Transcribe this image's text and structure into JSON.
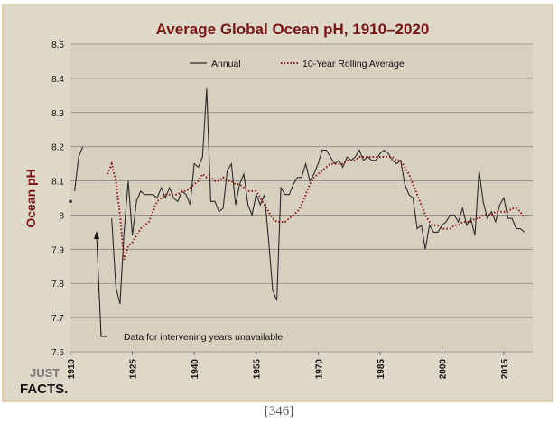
{
  "caption": "[346]",
  "logo": {
    "line1": "JUST",
    "line2": "FACTS."
  },
  "colors": {
    "background": "#ded8c8",
    "plot_area": "#d7d0bf",
    "title": "#7b1515",
    "annual": "#2b2b2b",
    "rolling": "#8e1616",
    "grid": "#888888",
    "border": "#d8c59a"
  },
  "chart_data": {
    "type": "line",
    "title": "Average Global Ocean pH, 1910–2020",
    "ylabel": "Ocean pH",
    "xlabel": "",
    "xlim": [
      1910,
      2022
    ],
    "ylim": [
      7.6,
      8.5
    ],
    "ytick_labels": [
      "7.6",
      "7.7",
      "7.8",
      "7.9",
      "8",
      "8.1",
      "8.2",
      "8.3",
      "8.4",
      "8.5"
    ],
    "xtick_labels": [
      "1910",
      "1925",
      "1940",
      "1955",
      "1970",
      "1985",
      "2000",
      "2015"
    ],
    "grid": "horizontal",
    "legend_position": "top",
    "annotation": "Data for intervening years unavailable",
    "series": [
      {
        "name": "Annual",
        "style": "solid",
        "segments": [
          [
            [
              1910,
              8.04
            ]
          ],
          [
            [
              1911,
              8.07
            ],
            [
              1912,
              8.17
            ],
            [
              1913,
              8.2
            ]
          ],
          [
            [
              1920,
              7.99
            ],
            [
              1921,
              7.79
            ],
            [
              1922,
              7.74
            ],
            [
              1923,
              7.95
            ],
            [
              1924,
              8.1
            ],
            [
              1925,
              7.94
            ],
            [
              1926,
              8.04
            ],
            [
              1927,
              8.07
            ],
            [
              1928,
              8.06
            ],
            [
              1929,
              8.06
            ],
            [
              1930,
              8.06
            ],
            [
              1931,
              8.05
            ],
            [
              1932,
              8.08
            ],
            [
              1933,
              8.05
            ],
            [
              1934,
              8.08
            ],
            [
              1935,
              8.05
            ],
            [
              1936,
              8.04
            ],
            [
              1937,
              8.07
            ],
            [
              1938,
              8.06
            ],
            [
              1939,
              8.03
            ],
            [
              1940,
              8.15
            ],
            [
              1941,
              8.14
            ],
            [
              1942,
              8.17
            ],
            [
              1943,
              8.37
            ],
            [
              1944,
              8.04
            ],
            [
              1945,
              8.04
            ],
            [
              1946,
              8.01
            ],
            [
              1947,
              8.02
            ],
            [
              1948,
              8.13
            ],
            [
              1949,
              8.15
            ],
            [
              1950,
              8.03
            ],
            [
              1951,
              8.09
            ],
            [
              1952,
              8.12
            ],
            [
              1953,
              8.03
            ],
            [
              1954,
              8.0
            ],
            [
              1955,
              8.06
            ],
            [
              1956,
              8.03
            ],
            [
              1957,
              8.06
            ],
            [
              1958,
              7.93
            ],
            [
              1959,
              7.78
            ],
            [
              1960,
              7.75
            ],
            [
              1961,
              8.08
            ],
            [
              1962,
              8.06
            ],
            [
              1963,
              8.06
            ],
            [
              1964,
              8.09
            ],
            [
              1965,
              8.11
            ],
            [
              1966,
              8.11
            ],
            [
              1967,
              8.15
            ],
            [
              1968,
              8.1
            ],
            [
              1969,
              8.12
            ],
            [
              1970,
              8.15
            ],
            [
              1971,
              8.19
            ],
            [
              1972,
              8.19
            ],
            [
              1973,
              8.17
            ],
            [
              1974,
              8.15
            ],
            [
              1975,
              8.16
            ],
            [
              1976,
              8.14
            ],
            [
              1977,
              8.17
            ],
            [
              1978,
              8.16
            ],
            [
              1979,
              8.17
            ],
            [
              1980,
              8.19
            ],
            [
              1981,
              8.16
            ],
            [
              1982,
              8.17
            ],
            [
              1983,
              8.16
            ],
            [
              1984,
              8.16
            ],
            [
              1985,
              8.18
            ],
            [
              1986,
              8.19
            ],
            [
              1987,
              8.18
            ],
            [
              1988,
              8.16
            ],
            [
              1989,
              8.15
            ],
            [
              1990,
              8.16
            ],
            [
              1991,
              8.09
            ],
            [
              1992,
              8.06
            ],
            [
              1993,
              8.05
            ],
            [
              1994,
              7.96
            ],
            [
              1995,
              7.97
            ],
            [
              1996,
              7.9
            ],
            [
              1997,
              7.97
            ],
            [
              1998,
              7.95
            ],
            [
              1999,
              7.95
            ],
            [
              2000,
              7.97
            ],
            [
              2001,
              7.98
            ],
            [
              2002,
              8.0
            ],
            [
              2003,
              8.0
            ],
            [
              2004,
              7.98
            ],
            [
              2005,
              8.02
            ],
            [
              2006,
              7.97
            ],
            [
              2007,
              7.99
            ],
            [
              2008,
              7.94
            ],
            [
              2009,
              8.13
            ],
            [
              2010,
              8.04
            ],
            [
              2011,
              7.99
            ],
            [
              2012,
              8.01
            ],
            [
              2013,
              7.98
            ],
            [
              2014,
              8.03
            ],
            [
              2015,
              8.05
            ],
            [
              2016,
              7.99
            ],
            [
              2017,
              7.99
            ],
            [
              2018,
              7.96
            ],
            [
              2019,
              7.96
            ],
            [
              2020,
              7.95
            ]
          ]
        ]
      },
      {
        "name": "10-Year Rolling Average",
        "style": "dotted",
        "segments": [
          [
            [
              1919,
              8.12
            ],
            [
              1920,
              8.15
            ],
            [
              1921,
              8.1
            ],
            [
              1922,
              8.0
            ],
            [
              1923,
              7.87
            ],
            [
              1924,
              7.91
            ],
            [
              1925,
              7.92
            ],
            [
              1926,
              7.94
            ],
            [
              1927,
              7.96
            ],
            [
              1928,
              7.97
            ],
            [
              1929,
              7.98
            ],
            [
              1930,
              8.01
            ],
            [
              1931,
              8.04
            ],
            [
              1932,
              8.05
            ],
            [
              1933,
              8.06
            ],
            [
              1934,
              8.06
            ],
            [
              1935,
              8.06
            ],
            [
              1936,
              8.06
            ],
            [
              1937,
              8.07
            ],
            [
              1938,
              8.07
            ],
            [
              1939,
              8.08
            ],
            [
              1940,
              8.09
            ],
            [
              1941,
              8.1
            ],
            [
              1942,
              8.12
            ],
            [
              1943,
              8.11
            ],
            [
              1944,
              8.11
            ],
            [
              1945,
              8.1
            ],
            [
              1946,
              8.1
            ],
            [
              1947,
              8.11
            ],
            [
              1948,
              8.1
            ],
            [
              1949,
              8.1
            ],
            [
              1950,
              8.09
            ],
            [
              1951,
              8.09
            ],
            [
              1952,
              8.08
            ],
            [
              1953,
              8.07
            ],
            [
              1954,
              8.07
            ],
            [
              1955,
              8.07
            ],
            [
              1956,
              8.05
            ],
            [
              1957,
              8.03
            ],
            [
              1958,
              8.01
            ],
            [
              1959,
              7.99
            ],
            [
              1960,
              7.98
            ],
            [
              1961,
              7.98
            ],
            [
              1962,
              7.98
            ],
            [
              1963,
              7.99
            ],
            [
              1964,
              8.0
            ],
            [
              1965,
              8.01
            ],
            [
              1966,
              8.03
            ],
            [
              1967,
              8.06
            ],
            [
              1968,
              8.09
            ],
            [
              1969,
              8.11
            ],
            [
              1970,
              8.12
            ],
            [
              1971,
              8.13
            ],
            [
              1972,
              8.14
            ],
            [
              1973,
              8.15
            ],
            [
              1974,
              8.15
            ],
            [
              1975,
              8.15
            ],
            [
              1976,
              8.15
            ],
            [
              1977,
              8.16
            ],
            [
              1978,
              8.16
            ],
            [
              1979,
              8.16
            ],
            [
              1980,
              8.17
            ],
            [
              1981,
              8.17
            ],
            [
              1982,
              8.17
            ],
            [
              1983,
              8.17
            ],
            [
              1984,
              8.17
            ],
            [
              1985,
              8.17
            ],
            [
              1986,
              8.17
            ],
            [
              1987,
              8.17
            ],
            [
              1988,
              8.17
            ],
            [
              1989,
              8.16
            ],
            [
              1990,
              8.16
            ],
            [
              1991,
              8.14
            ],
            [
              1992,
              8.12
            ],
            [
              1993,
              8.09
            ],
            [
              1994,
              8.06
            ],
            [
              1995,
              8.03
            ],
            [
              1996,
              8.0
            ],
            [
              1997,
              7.98
            ],
            [
              1998,
              7.97
            ],
            [
              1999,
              7.97
            ],
            [
              2000,
              7.96
            ],
            [
              2001,
              7.96
            ],
            [
              2002,
              7.96
            ],
            [
              2003,
              7.97
            ],
            [
              2004,
              7.97
            ],
            [
              2005,
              7.98
            ],
            [
              2006,
              7.98
            ],
            [
              2007,
              7.98
            ],
            [
              2008,
              7.99
            ],
            [
              2009,
              7.99
            ],
            [
              2010,
              8.0
            ],
            [
              2011,
              8.0
            ],
            [
              2012,
              8.0
            ],
            [
              2013,
              8.01
            ],
            [
              2014,
              8.01
            ],
            [
              2015,
              8.01
            ],
            [
              2016,
              8.01
            ],
            [
              2017,
              8.02
            ],
            [
              2018,
              8.02
            ],
            [
              2019,
              8.01
            ],
            [
              2020,
              7.99
            ]
          ]
        ]
      }
    ]
  }
}
